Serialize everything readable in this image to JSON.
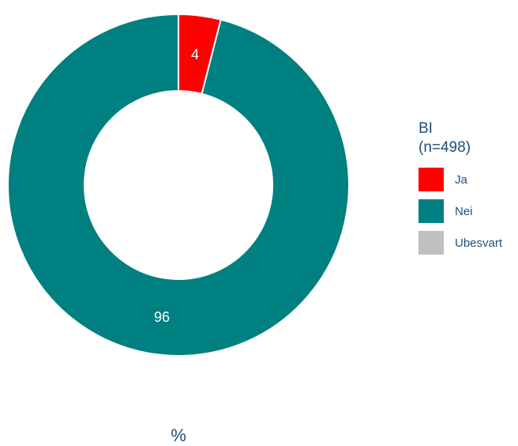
{
  "chart_data": {
    "type": "pie",
    "donut": true,
    "legend_title": [
      "BI",
      "(n=498)"
    ],
    "xlabel": "%",
    "legend_position": "right",
    "slices": [
      {
        "name": "Ja",
        "value": 4,
        "color": "#ff0000"
      },
      {
        "name": "Nei",
        "value": 96,
        "color": "#008080"
      },
      {
        "name": "Ubesvart",
        "value": 0,
        "color": "#c0c0c0"
      }
    ]
  }
}
